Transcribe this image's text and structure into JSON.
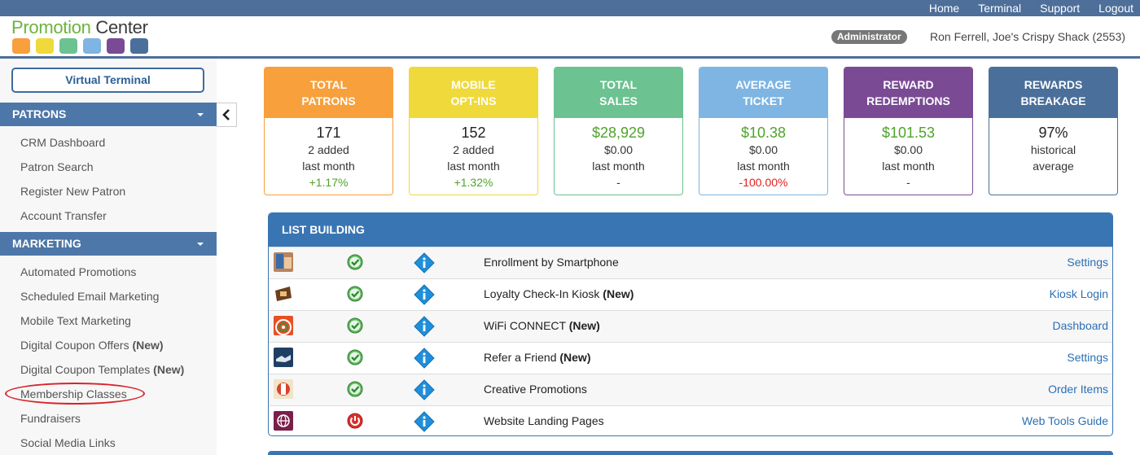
{
  "topnav": [
    "Home",
    "Terminal",
    "Support",
    "Logout"
  ],
  "logo": {
    "text_a": "Promotion",
    "text_b": " Center",
    "square_colors": [
      "#f7a03c",
      "#f0d93a",
      "#6cc291",
      "#7eb5e2",
      "#7a4b94",
      "#4a6f9a"
    ]
  },
  "header": {
    "role_badge": "Administrator",
    "user_info": "Ron Ferrell, Joe's Crispy Shack (2553)"
  },
  "sidebar": {
    "virtual_terminal": "Virtual Terminal",
    "patrons_title": "PATRONS",
    "patrons_items": [
      "CRM Dashboard",
      "Patron Search",
      "Register New Patron",
      "Account Transfer"
    ],
    "marketing_title": "MARKETING",
    "marketing_items": [
      {
        "label": "Automated Promotions",
        "tag": ""
      },
      {
        "label": "Scheduled Email Marketing",
        "tag": ""
      },
      {
        "label": "Mobile Text Marketing",
        "tag": ""
      },
      {
        "label": "Digital Coupon Offers ",
        "tag": "(New)"
      },
      {
        "label": "Digital Coupon Templates ",
        "tag": "(New)"
      },
      {
        "label": "Membership Classes",
        "tag": ""
      },
      {
        "label": "Fundraisers",
        "tag": ""
      },
      {
        "label": "Social Media Links",
        "tag": ""
      }
    ]
  },
  "stats": [
    {
      "title1": "TOTAL",
      "title2": "PATRONS",
      "value": "171",
      "sub1": "2 added",
      "sub2": "last month",
      "change": "+1.17%",
      "color": "#f7a03c",
      "change_color": "#4fa32b"
    },
    {
      "title1": "MOBILE",
      "title2": "OPT-INS",
      "value": "152",
      "sub1": "2 added",
      "sub2": "last month",
      "change": "+1.32%",
      "color": "#f0d93a",
      "change_color": "#4fa32b"
    },
    {
      "title1": "TOTAL",
      "title2": "SALES",
      "value": "$28,929",
      "sub1": "$0.00",
      "sub2": "last month",
      "change": "-",
      "color": "#6cc291",
      "change_color": "#333333"
    },
    {
      "title1": "AVERAGE",
      "title2": "TICKET",
      "value": "$10.38",
      "sub1": "$0.00",
      "sub2": "last month",
      "change": "-100.00%",
      "color": "#7eb5e2",
      "change_color": "#e02020"
    },
    {
      "title1": "REWARD",
      "title2": "REDEMPTIONS",
      "value": "$101.53",
      "sub1": "$0.00",
      "sub2": "last month",
      "change": "-",
      "color": "#7a4b94",
      "change_color": "#333333"
    },
    {
      "title1": "REWARDS",
      "title2": "BREAKAGE",
      "value": "97%",
      "sub1": "historical",
      "sub2": "average",
      "change": "",
      "color": "#4a6f9a",
      "change_color": "#333333"
    }
  ],
  "list_building": {
    "title": "LIST BUILDING",
    "rows": [
      {
        "name": "Enrollment by Smartphone",
        "tag": "",
        "link": "Settings",
        "status": "active",
        "thumb": "smartphone-thumbnail"
      },
      {
        "name": "Loyalty Check-In Kiosk ",
        "tag": "(New)",
        "link": "Kiosk Login",
        "status": "active",
        "thumb": "kiosk-thumbnail"
      },
      {
        "name": "WiFi CONNECT ",
        "tag": "(New)",
        "link": "Dashboard",
        "status": "active",
        "thumb": "wifi-thumbnail"
      },
      {
        "name": "Refer a Friend ",
        "tag": "(New)",
        "link": "Settings",
        "status": "active",
        "thumb": "handshake-thumbnail"
      },
      {
        "name": "Creative Promotions",
        "tag": "",
        "link": "Order Items",
        "status": "active",
        "thumb": "creative-thumbnail"
      },
      {
        "name": "Website Landing Pages",
        "tag": "",
        "link": "Web Tools Guide",
        "status": "inactive",
        "thumb": "globe-thumbnail"
      }
    ]
  }
}
